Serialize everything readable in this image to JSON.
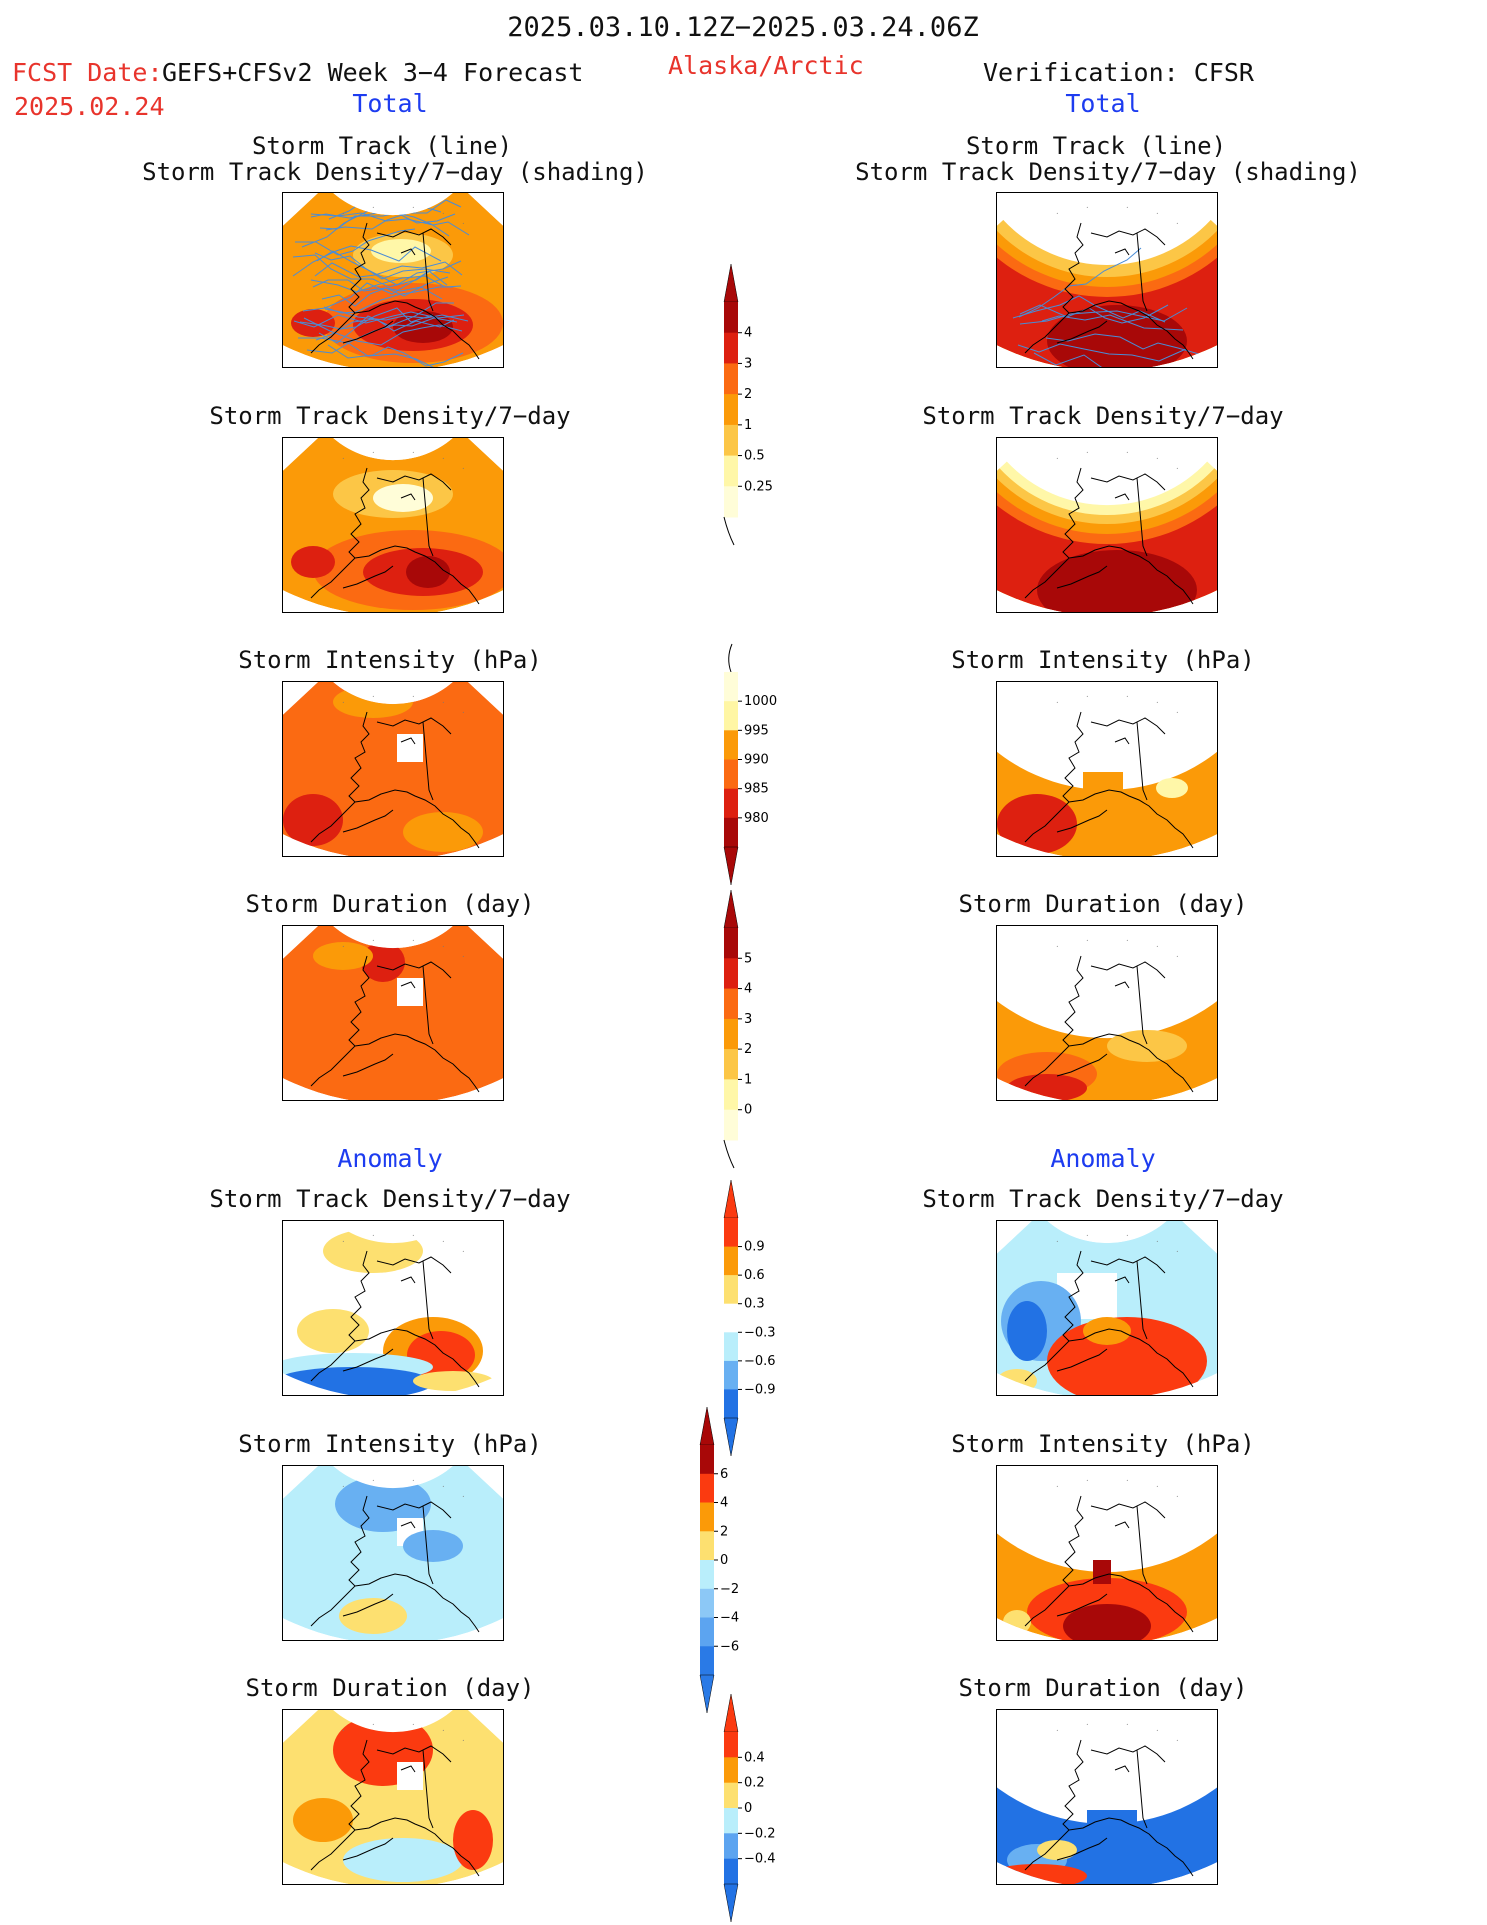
{
  "header": {
    "period": "2025.03.10.12Z−2025.03.24.06Z",
    "fcst_label": "FCST Date:",
    "fcst_date": "2025.02.24",
    "model": "GEFS+CFSv2 Week 3−4 Forecast",
    "region": "Alaska/Arctic",
    "verification": "Verification: CFSR",
    "left_section": "Total",
    "right_section": "Total"
  },
  "sections": {
    "anomaly_left": "Anomaly",
    "anomaly_right": "Anomaly"
  },
  "panel_titles": {
    "track_line": "Storm Track (line)",
    "track_shading": "Storm Track Density/7−day (shading)",
    "density": "Storm Track Density/7−day",
    "intensity": "Storm Intensity (hPa)",
    "duration": "Storm Duration (day)"
  },
  "colorbars": {
    "density": {
      "ticks": [
        "4",
        "3",
        "2",
        "1",
        "0.5",
        "0.25"
      ],
      "colors": [
        "#a80808",
        "#dd2010",
        "#fb6a12",
        "#fb9a08",
        "#fcc646",
        "#fff7a8",
        "#fffdd8"
      ]
    },
    "intensity": {
      "ticks": [
        "1000",
        "995",
        "990",
        "985",
        "980"
      ],
      "colors": [
        "#fffdd8",
        "#fff6a4",
        "#fb9a08",
        "#fb6a12",
        "#dd2010",
        "#a80808"
      ]
    },
    "duration": {
      "ticks": [
        "5",
        "4",
        "3",
        "2",
        "1",
        "0"
      ],
      "colors": [
        "#a80808",
        "#dd2010",
        "#fb6a12",
        "#fb9a08",
        "#fcc646",
        "#fff7a8",
        "#fffdd8"
      ]
    },
    "anom_density": {
      "ticks": [
        "0.9",
        "0.6",
        "0.3",
        "−0.3",
        "−0.6",
        "−0.9"
      ],
      "colors": [
        "#fb3a10",
        "#fb9a08",
        "#fde070",
        "#ffffff",
        "#b9eefb",
        "#68b0f2",
        "#2272e4"
      ]
    },
    "anom_intensity": {
      "ticks": [
        "6",
        "4",
        "2",
        "0",
        "−2",
        "−4",
        "−6"
      ],
      "colors": [
        "#a80808",
        "#fb3a10",
        "#fb9a08",
        "#fde070",
        "#b9eefb",
        "#8cc8f6",
        "#5ca4f0",
        "#2a7ae6"
      ]
    },
    "anom_duration": {
      "ticks": [
        "0.4",
        "0.2",
        "0",
        "−0.2",
        "−0.4"
      ],
      "colors": [
        "#fb3a10",
        "#fb9a08",
        "#fde070",
        "#b9eefb",
        "#5ca4f0",
        "#2272e4"
      ]
    }
  },
  "colors": {
    "dark_red": "#a80808",
    "red": "#dd2010",
    "orange_red": "#fb6a12",
    "orange": "#fb9a08",
    "gold": "#fcc646",
    "yellow": "#fff7a8",
    "pale_yellow": "#fffdd8",
    "anom_red": "#fb3a10",
    "anom_light_yellow": "#fde070",
    "light_blue": "#b9eefb",
    "mid_blue": "#68b0f2",
    "blue": "#2272e4",
    "storm_track_line": "#4a8cd6",
    "title_red": "#e8342c",
    "section_blue": "#1d3cf0"
  }
}
